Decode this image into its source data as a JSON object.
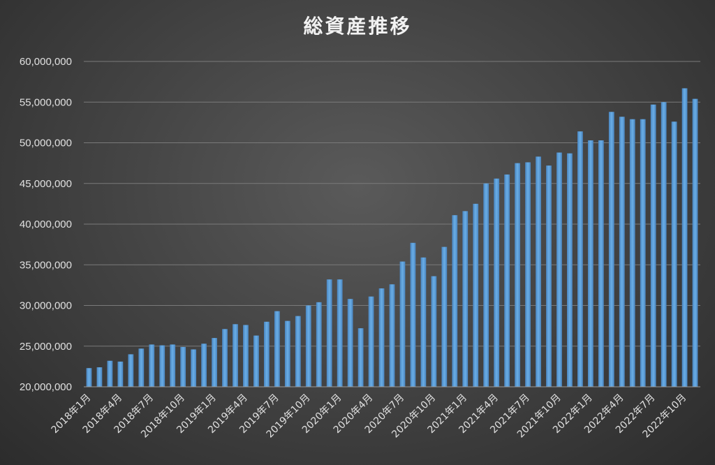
{
  "chart_data": {
    "type": "bar",
    "title": "総資産推移",
    "xlabel": "",
    "ylabel": "",
    "ylim": [
      20000000,
      60000000
    ],
    "yticks": [
      20000000,
      25000000,
      30000000,
      35000000,
      40000000,
      45000000,
      50000000,
      55000000,
      60000000
    ],
    "ytick_labels": [
      "20,000,000",
      "25,000,000",
      "30,000,000",
      "35,000,000",
      "40,000,000",
      "45,000,000",
      "50,000,000",
      "55,000,000",
      "60,000,000"
    ],
    "grid": true,
    "legend": "none",
    "bar_color": "#5b9bd5",
    "categories": [
      "2018年1月",
      "2018年2月",
      "2018年3月",
      "2018年4月",
      "2018年5月",
      "2018年6月",
      "2018年7月",
      "2018年8月",
      "2018年9月",
      "2018年10月",
      "2018年11月",
      "2018年12月",
      "2019年1月",
      "2019年2月",
      "2019年3月",
      "2019年4月",
      "2019年5月",
      "2019年6月",
      "2019年7月",
      "2019年8月",
      "2019年9月",
      "2019年10月",
      "2019年11月",
      "2019年12月",
      "2020年1月",
      "2020年2月",
      "2020年3月",
      "2020年4月",
      "2020年5月",
      "2020年6月",
      "2020年7月",
      "2020年8月",
      "2020年9月",
      "2020年10月",
      "2020年11月",
      "2020年12月",
      "2021年1月",
      "2021年2月",
      "2021年3月",
      "2021年4月",
      "2021年5月",
      "2021年6月",
      "2021年7月",
      "2021年8月",
      "2021年9月",
      "2021年10月",
      "2021年11月",
      "2021年12月",
      "2022年1月",
      "2022年2月",
      "2022年3月",
      "2022年4月",
      "2022年5月",
      "2022年6月",
      "2022年7月",
      "2022年8月",
      "2022年9月",
      "2022年10月",
      "2022年11月"
    ],
    "x_tick_labels": [
      "2018年1月",
      "2018年4月",
      "2018年7月",
      "2018年10月",
      "2019年1月",
      "2019年4月",
      "2019年7月",
      "2019年10月",
      "2020年1月",
      "2020年4月",
      "2020年7月",
      "2020年10月",
      "2021年1月",
      "2021年4月",
      "2021年7月",
      "2021年10月",
      "2022年1月",
      "2022年4月",
      "2022年7月",
      "2022年10月"
    ],
    "values": [
      22300000,
      22400000,
      23200000,
      23100000,
      24000000,
      24700000,
      25200000,
      25100000,
      25200000,
      24900000,
      24600000,
      25300000,
      26000000,
      27100000,
      27700000,
      27600000,
      26300000,
      28000000,
      29300000,
      28100000,
      28700000,
      30000000,
      30400000,
      33200000,
      33200000,
      30800000,
      27200000,
      31100000,
      32100000,
      32600000,
      35400000,
      37700000,
      35900000,
      33600000,
      37200000,
      41100000,
      41600000,
      42500000,
      45000000,
      45600000,
      46100000,
      47500000,
      47600000,
      48300000,
      47200000,
      48800000,
      48700000,
      51400000,
      50300000,
      50300000,
      53800000,
      53200000,
      52900000,
      52900000,
      54700000,
      55000000,
      52600000,
      56700000,
      55400000
    ]
  }
}
